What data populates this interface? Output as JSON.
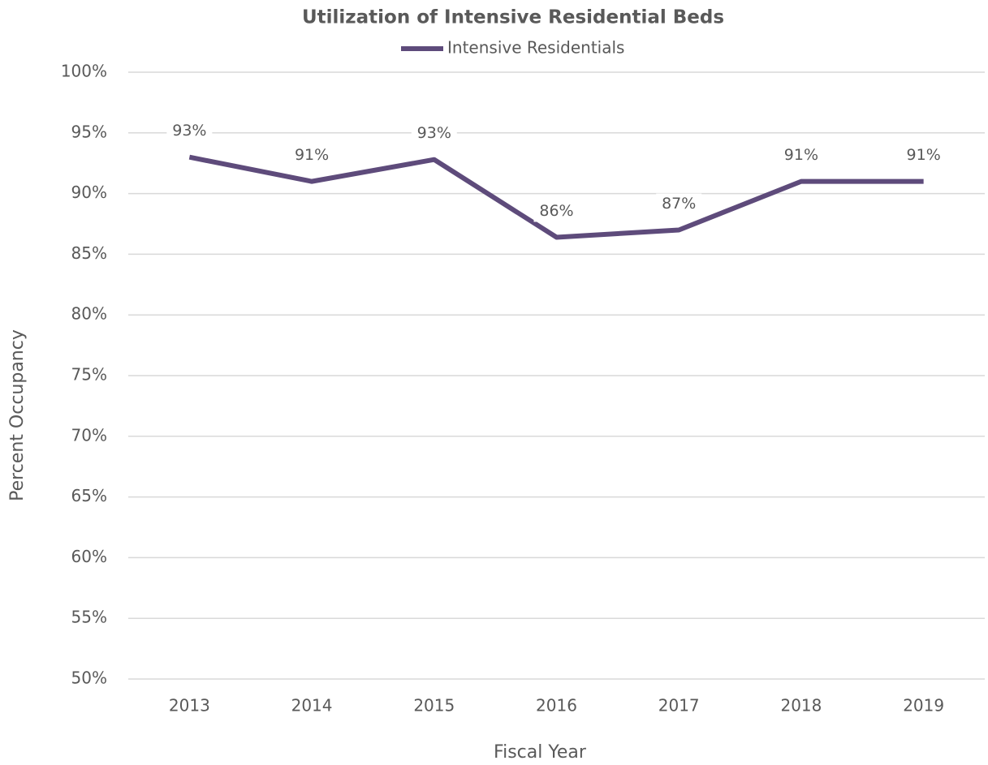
{
  "chart_data": {
    "type": "line",
    "title": "Utilization of Intensive Residential Beds",
    "x_label": "Fiscal Year",
    "y_label": "Percent Occupancy",
    "categories": [
      "2013",
      "2014",
      "2015",
      "2016",
      "2017",
      "2018",
      "2019"
    ],
    "series": [
      {
        "name": "Intensive Residentials",
        "color": "#5e4b7b",
        "values": [
          93.0,
          91.0,
          92.8,
          86.4,
          87.0,
          91.0,
          91.0
        ],
        "value_labels": [
          "93%",
          "91%",
          "93%",
          "86%",
          "87%",
          "91%",
          "91%"
        ]
      }
    ],
    "ylim": [
      50,
      100
    ],
    "yticks": [
      {
        "value": 50,
        "label": "50%"
      },
      {
        "value": 55,
        "label": "55%"
      },
      {
        "value": 60,
        "label": "60%"
      },
      {
        "value": 65,
        "label": "65%"
      },
      {
        "value": 70,
        "label": "70%"
      },
      {
        "value": 75,
        "label": "75%"
      },
      {
        "value": 80,
        "label": "80%"
      },
      {
        "value": 85,
        "label": "85%"
      },
      {
        "value": 90,
        "label": "90%"
      },
      {
        "value": 95,
        "label": "95%"
      },
      {
        "value": 100,
        "label": "100%"
      }
    ],
    "grid": true,
    "legend": "top"
  }
}
